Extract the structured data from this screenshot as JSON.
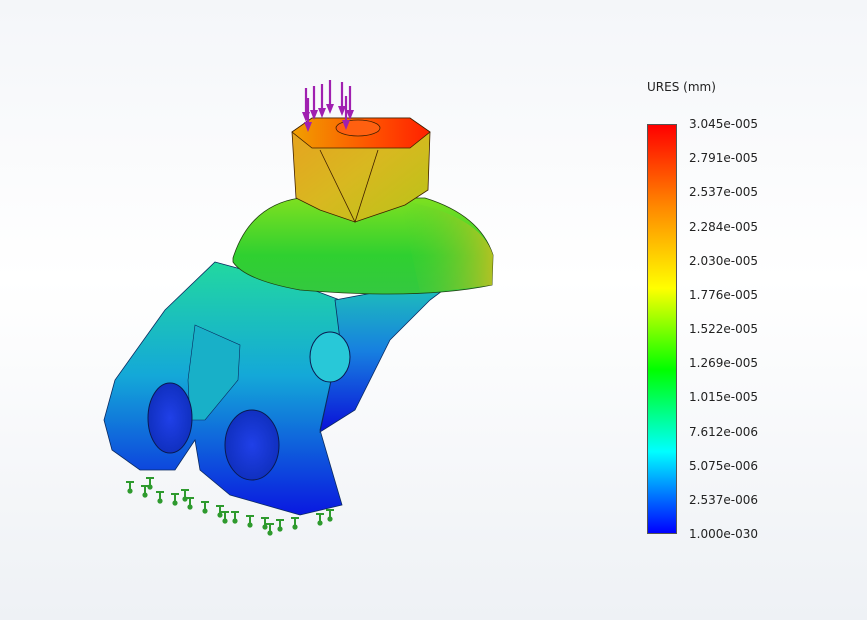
{
  "result": {
    "quantity_label": "URES (mm)",
    "colors": [
      "#ff0000",
      "#ff8800",
      "#ffff00",
      "#00ff00",
      "#00ffff",
      "#0000ff"
    ]
  },
  "legend": {
    "labels": [
      "3.045e-005",
      "2.791e-005",
      "2.537e-005",
      "2.284e-005",
      "2.030e-005",
      "1.776e-005",
      "1.522e-005",
      "1.269e-005",
      "1.015e-005",
      "7.612e-006",
      "5.075e-006",
      "2.537e-006",
      "1.000e-030"
    ]
  },
  "model": {
    "load_icon": "downward-force-arrows-icon",
    "fixture_icon": "fixed-geometry-icon",
    "load_color": "#a020b0",
    "fixture_color": "#2e9a2e"
  }
}
